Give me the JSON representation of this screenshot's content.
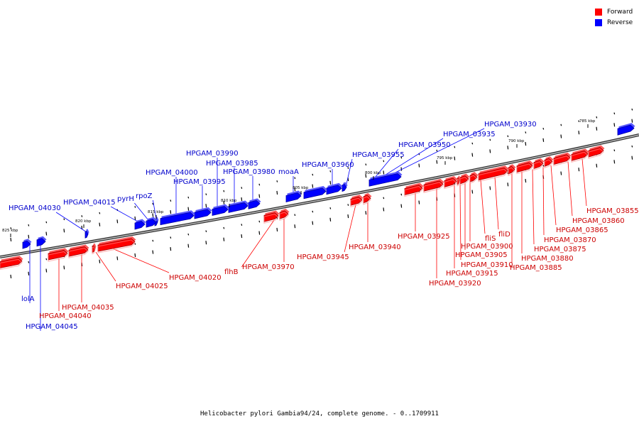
{
  "legend": {
    "forward": "Forward",
    "reverse": "Reverse"
  },
  "colors": {
    "forward": "#ff0000",
    "reverse": "#0000ff",
    "fwd_label": "#cc0000",
    "rev_label": "#0000cc",
    "axis": "#777777"
  },
  "caption": "Helicobacter pylori Gambia94/24, complete genome. - 0..1709911",
  "kbp_labels": [
    "785 kbp",
    "790 kbp",
    "795 kbp",
    "800 kbp",
    "805 kbp",
    "810 kbp",
    "815 kbp",
    "820 kbp",
    "825 kbp"
  ],
  "reverse_labels": [
    "HPGAM_03930",
    "HPGAM_03935",
    "HPGAM_03950",
    "HPGAM_03955",
    "HPGAM_03960",
    "moaA",
    "HPGAM_03980",
    "HPGAM_03985",
    "HPGAM_03990",
    "HPGAM_03995",
    "HPGAM_04000",
    "rpoZ",
    "pyrH",
    "HPGAM_04015",
    "HPGAM_04030",
    "lolA",
    "HPGAM_04045"
  ],
  "forward_labels": [
    "HPGAM_03855",
    "HPGAM_03860",
    "HPGAM_03865",
    "HPGAM_03870",
    "HPGAM_03875",
    "HPGAM_03880",
    "HPGAM_03885",
    "fliD",
    "fliS",
    "HPGAM_03900",
    "HPGAM_03905",
    "HPGAM_03910",
    "HPGAM_03915",
    "HPGAM_03920",
    "HPGAM_03925",
    "HPGAM_03940",
    "HPGAM_03945",
    "HPGAM_03970",
    "flhB",
    "HPGAM_04020",
    "HPGAM_04025",
    "HPGAM_04035",
    "HPGAM_04040"
  ]
}
